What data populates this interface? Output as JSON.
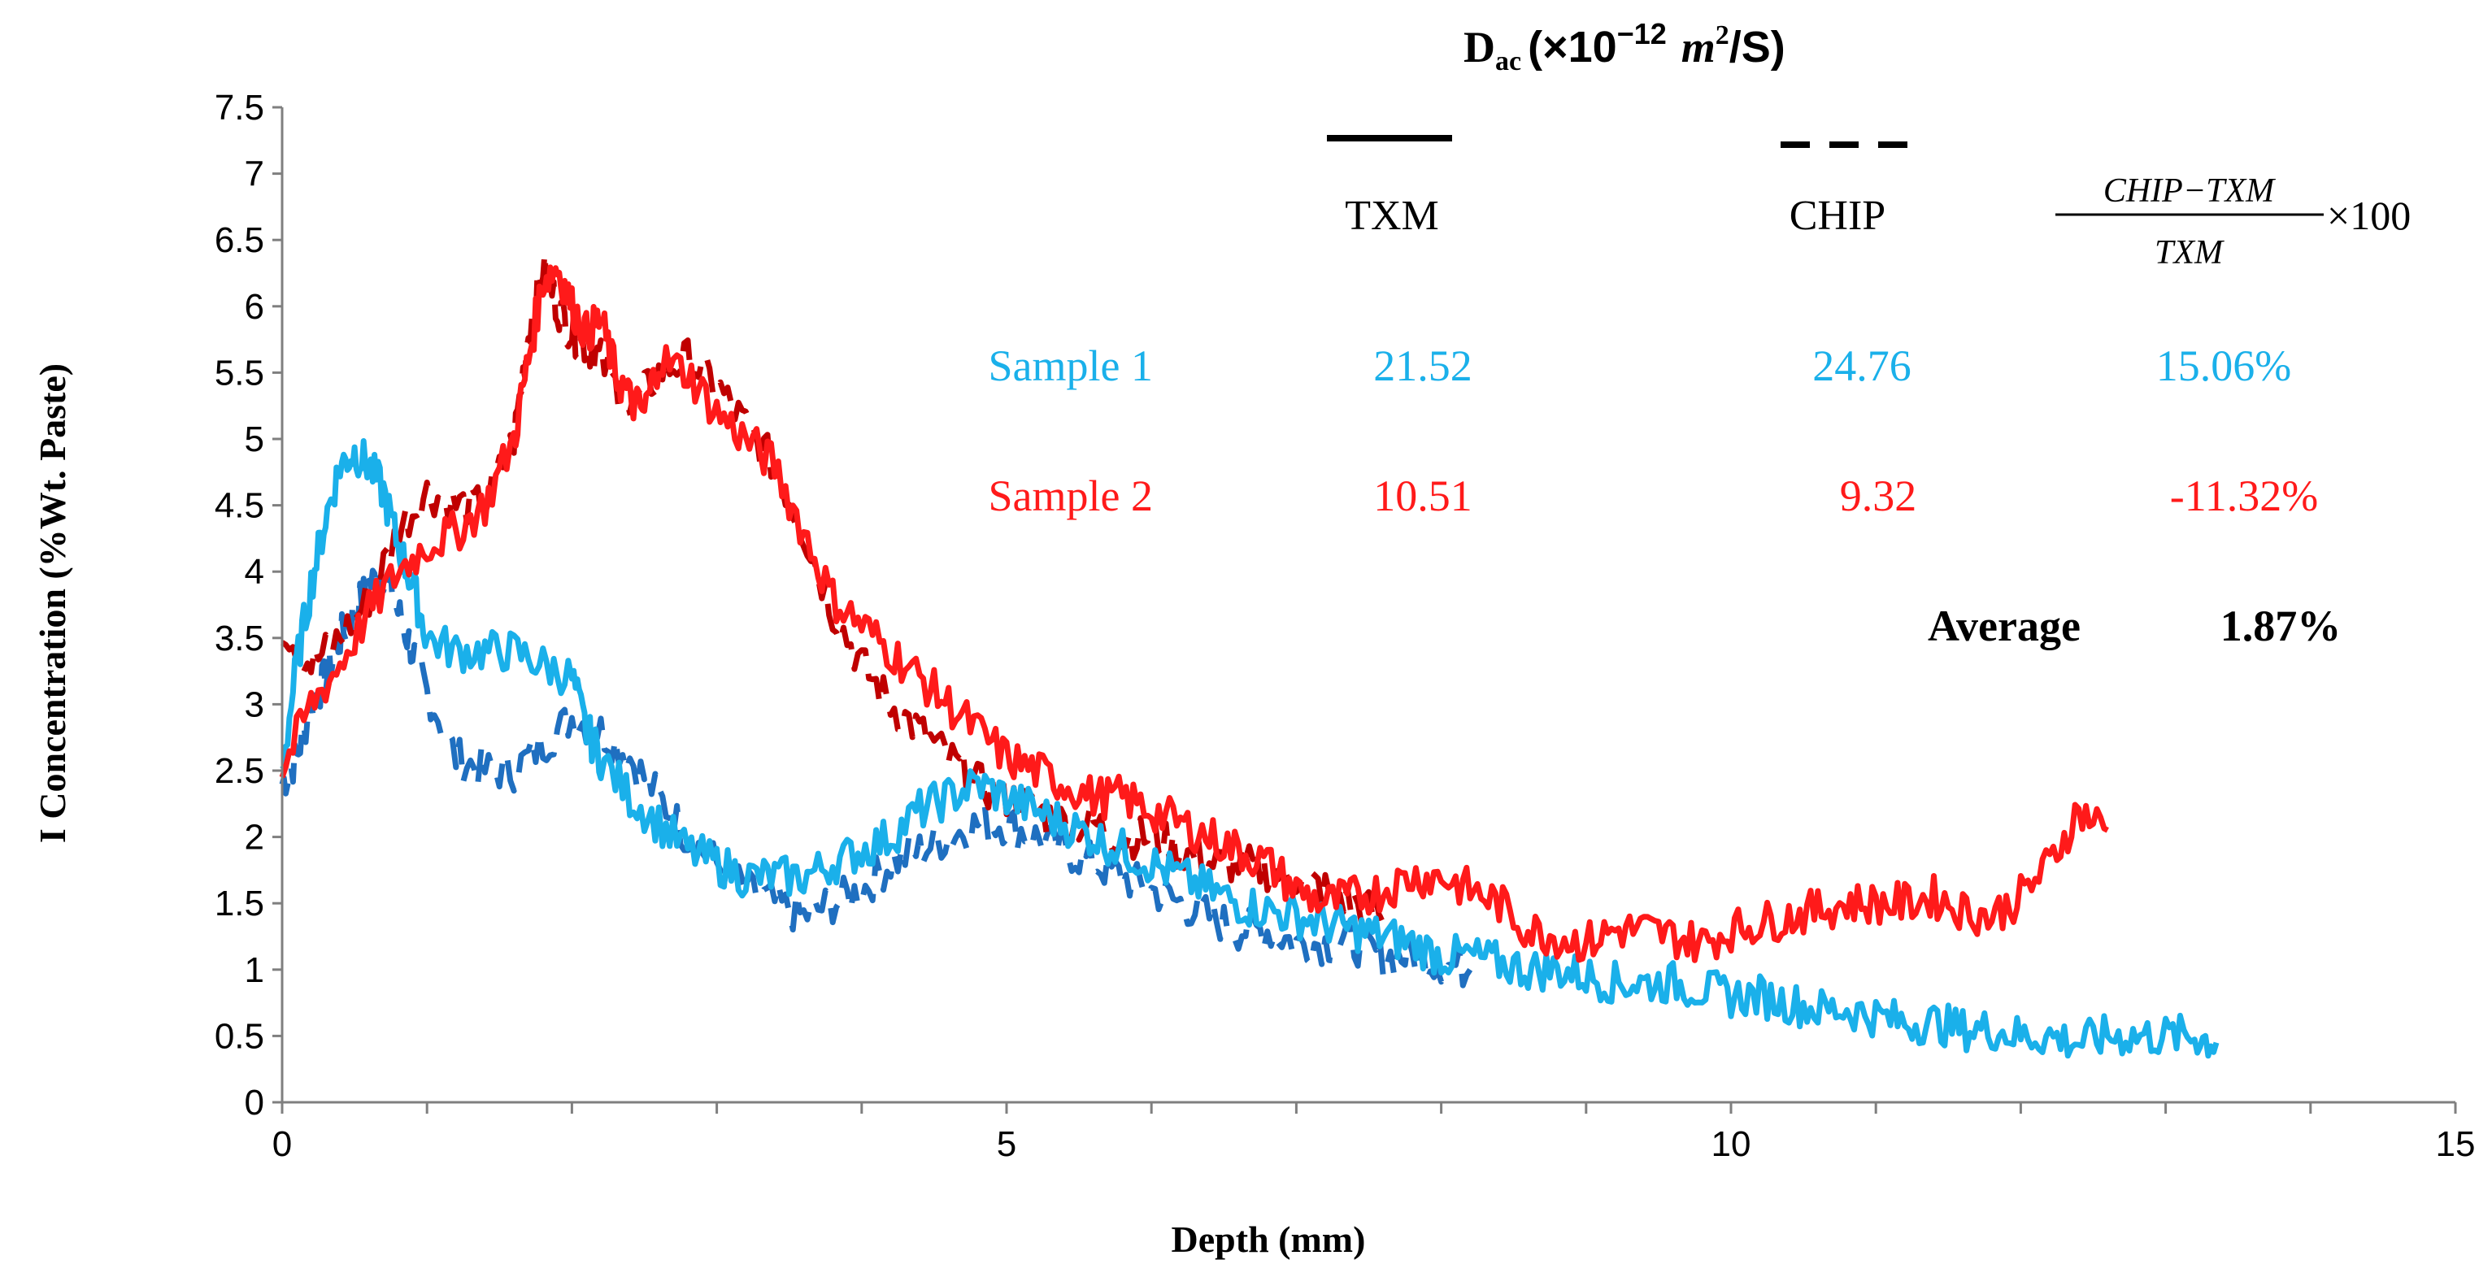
{
  "chart_data": {
    "type": "line",
    "xlabel": "Depth (mm)",
    "ylabel": "I Concentration (%Wt. Paste)",
    "xlim": [
      0,
      15
    ],
    "ylim": [
      0,
      7.5
    ],
    "x_ticks": [
      "0",
      "5",
      "10",
      "15"
    ],
    "y_ticks": [
      "0",
      "0.5",
      "1",
      "1.5",
      "2",
      "2.5",
      "3",
      "3.5",
      "4",
      "4.5",
      "5",
      "5.5",
      "6",
      "6.5",
      "7",
      "7.5"
    ],
    "grid": false,
    "annotation_table": {
      "title_main": "D",
      "title_sub": "ac",
      "title_units": "(×10",
      "title_exp": "−12",
      "title_unit_m": "m",
      "title_unit_m_exp": "2",
      "title_unit_tail": "/S)",
      "col_txm": "TXM",
      "col_chip": "CHIP",
      "formula_numerator": "CHIP−TXM",
      "formula_denominator": "TXM",
      "formula_multiplier": "×100",
      "rows": [
        {
          "label": "Sample 1",
          "txm": "21.52",
          "chip": "24.76",
          "diff": "15.06%",
          "color": "#1ab0ea"
        },
        {
          "label": "Sample 2",
          "txm": "10.51",
          "chip": "9.32",
          "diff": "-11.32%",
          "color": "#ff1a1a"
        }
      ],
      "average_label": "Average",
      "average_value": "1.87%"
    },
    "series": [
      {
        "name": "Sample 1 TXM",
        "color": "#1ab0ea",
        "style": "solid",
        "x": [
          0,
          0.1,
          0.2,
          0.3,
          0.4,
          0.5,
          0.6,
          0.7,
          0.8,
          0.9,
          1.0,
          1.2,
          1.4,
          1.6,
          1.8,
          2.0,
          2.1,
          2.2,
          2.4,
          2.6,
          2.8,
          3.0,
          3.2,
          3.4,
          3.6,
          3.8,
          4.0,
          4.2,
          4.4,
          4.6,
          4.8,
          5.0,
          5.2,
          5.4,
          5.6,
          5.8,
          6.0,
          6.2,
          6.4,
          6.6,
          6.8,
          7.0,
          7.2,
          7.4,
          7.6,
          7.8,
          8.0,
          8.2,
          8.4,
          8.6,
          8.8,
          9.0,
          9.2,
          9.4,
          9.6,
          9.8,
          10.0,
          10.2,
          10.4,
          10.6,
          10.8,
          11.0,
          11.2,
          11.4,
          11.6,
          11.8,
          12.0,
          12.2,
          12.4,
          12.6,
          12.8,
          13.0,
          13.2,
          13.35
        ],
        "y": [
          2.5,
          3.3,
          3.9,
          4.4,
          4.8,
          4.9,
          4.8,
          4.6,
          4.2,
          3.9,
          3.5,
          3.4,
          3.4,
          3.4,
          3.3,
          3.2,
          2.8,
          2.6,
          2.3,
          2.1,
          1.9,
          1.8,
          1.7,
          1.7,
          1.7,
          1.8,
          1.9,
          2.0,
          2.2,
          2.3,
          2.4,
          2.3,
          2.2,
          2.1,
          2.0,
          1.9,
          1.8,
          1.7,
          1.6,
          1.5,
          1.45,
          1.4,
          1.35,
          1.3,
          1.25,
          1.2,
          1.1,
          1.1,
          1.05,
          1.0,
          1.0,
          0.95,
          0.9,
          0.9,
          0.9,
          0.85,
          0.8,
          0.8,
          0.75,
          0.7,
          0.7,
          0.65,
          0.6,
          0.6,
          0.55,
          0.55,
          0.5,
          0.5,
          0.45,
          0.5,
          0.5,
          0.5,
          0.5,
          0.45
        ]
      },
      {
        "name": "Sample 1 CHIP",
        "color": "#1f6fc0",
        "style": "dashed",
        "x": [
          0,
          0.1,
          0.2,
          0.3,
          0.4,
          0.5,
          0.6,
          0.7,
          0.8,
          0.9,
          1.0,
          1.2,
          1.4,
          1.6,
          1.8,
          2.0,
          2.2,
          2.4,
          2.6,
          2.8,
          3.0,
          3.2,
          3.4,
          3.6,
          3.8,
          4.0,
          4.2,
          4.4,
          4.6,
          4.8,
          5.0,
          5.2,
          5.4,
          5.6,
          5.8,
          6.0,
          6.2,
          6.4,
          6.6,
          6.8,
          7.0,
          7.2,
          7.4,
          7.6,
          7.8,
          8.0,
          8.2
        ],
        "y": [
          2.4,
          2.6,
          3.0,
          3.2,
          3.5,
          3.7,
          3.9,
          4.0,
          3.7,
          3.4,
          3.1,
          2.6,
          2.5,
          2.5,
          2.7,
          2.9,
          2.8,
          2.6,
          2.3,
          2.0,
          1.8,
          1.6,
          1.5,
          1.4,
          1.5,
          1.6,
          1.8,
          1.9,
          2.0,
          2.1,
          2.1,
          2.0,
          1.9,
          1.8,
          1.7,
          1.6,
          1.5,
          1.4,
          1.3,
          1.3,
          1.2,
          1.2,
          1.2,
          1.1,
          1.1,
          1.05,
          1.0
        ]
      },
      {
        "name": "Sample 2 TXM",
        "color": "#ff1a1a",
        "style": "solid",
        "x": [
          0,
          0.2,
          0.4,
          0.6,
          0.8,
          1.0,
          1.2,
          1.4,
          1.6,
          1.7,
          1.8,
          1.9,
          2.0,
          2.1,
          2.2,
          2.3,
          2.4,
          2.5,
          2.6,
          2.8,
          3.0,
          3.2,
          3.4,
          3.6,
          3.8,
          4.0,
          4.2,
          4.4,
          4.6,
          4.8,
          5.0,
          5.2,
          5.4,
          5.6,
          5.8,
          6.0,
          6.2,
          6.4,
          6.6,
          6.8,
          7.0,
          7.2,
          7.4,
          7.6,
          7.8,
          8.0,
          8.2,
          8.4,
          8.6,
          8.8,
          9.0,
          9.2,
          9.4,
          9.6,
          9.8,
          10.0,
          10.2,
          10.4,
          10.6,
          10.8,
          11.0,
          11.2,
          11.4,
          11.6,
          11.8,
          12.0,
          12.2,
          12.4,
          12.6
        ],
        "y": [
          2.5,
          3.0,
          3.3,
          3.7,
          4.0,
          4.2,
          4.3,
          4.5,
          5.0,
          5.6,
          6.2,
          6.3,
          6.0,
          5.8,
          5.9,
          5.5,
          5.3,
          5.2,
          5.6,
          5.5,
          5.2,
          5.0,
          4.8,
          4.3,
          3.8,
          3.6,
          3.4,
          3.2,
          3.0,
          2.8,
          2.6,
          2.5,
          2.4,
          2.3,
          2.3,
          2.2,
          2.1,
          2.0,
          1.9,
          1.8,
          1.6,
          1.5,
          1.55,
          1.6,
          1.7,
          1.7,
          1.6,
          1.5,
          1.3,
          1.25,
          1.2,
          1.3,
          1.3,
          1.25,
          1.2,
          1.3,
          1.35,
          1.4,
          1.45,
          1.5,
          1.5,
          1.5,
          1.55,
          1.45,
          1.4,
          1.55,
          1.8,
          2.2,
          2.05
        ]
      },
      {
        "name": "Sample 2 CHIP",
        "color": "#c00000",
        "style": "dashed",
        "x": [
          0,
          0.2,
          0.4,
          0.6,
          0.8,
          1.0,
          1.2,
          1.4,
          1.6,
          1.7,
          1.8,
          1.9,
          2.0,
          2.1,
          2.2,
          2.4,
          2.6,
          2.8,
          3.0,
          3.2,
          3.4,
          3.6,
          3.8,
          4.0,
          4.2,
          4.4,
          4.6,
          4.8,
          5.0,
          5.2,
          5.4,
          5.6,
          5.8,
          6.0,
          6.2,
          6.4,
          6.6,
          6.8,
          7.0,
          7.2,
          7.4,
          7.6
        ],
        "y": [
          3.6,
          3.3,
          3.5,
          3.8,
          4.3,
          4.6,
          4.5,
          4.5,
          5.0,
          5.8,
          6.3,
          6.0,
          5.8,
          5.7,
          5.6,
          5.2,
          5.5,
          5.6,
          5.4,
          5.1,
          4.8,
          4.3,
          3.7,
          3.3,
          3.0,
          2.8,
          2.6,
          2.4,
          2.3,
          2.2,
          2.1,
          2.1,
          2.0,
          2.0,
          1.9,
          1.8,
          1.8,
          1.75,
          1.7,
          1.6,
          1.5,
          1.4
        ]
      }
    ]
  }
}
